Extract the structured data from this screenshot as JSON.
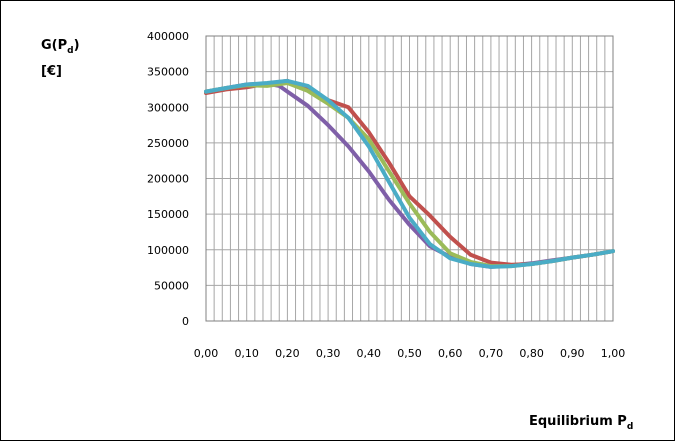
{
  "chart_data": {
    "type": "line",
    "ylabel_main": "G(P",
    "ylabel_sub": "d",
    "ylabel_close": ")",
    "yunit": "[€]",
    "xlabel_main": "Equilibrium P",
    "xlabel_sub": "d",
    "xlim": [
      0,
      1
    ],
    "ylim": [
      0,
      400000
    ],
    "grid": true,
    "legend": "none",
    "x_tick_labels": [
      "0,00",
      "0,10",
      "0,20",
      "0,30",
      "0,40",
      "0,50",
      "0,60",
      "0,70",
      "0,80",
      "0,90",
      "1,00"
    ],
    "y_tick_labels": [
      "0",
      "50000",
      "100000",
      "150000",
      "200000",
      "250000",
      "300000",
      "350000",
      "400000"
    ],
    "series": [
      {
        "color": "#7f5fa8",
        "x": [
          0,
          0.05,
          0.1,
          0.15,
          0.18,
          0.2,
          0.25,
          0.3,
          0.35,
          0.4,
          0.45,
          0.5,
          0.55,
          0.6,
          0.65,
          0.7,
          0.75,
          0.8,
          0.85,
          0.9,
          0.95,
          1.0
        ],
        "y": [
          322000,
          327000,
          332000,
          333000,
          330000,
          322000,
          302000,
          275000,
          245000,
          210000,
          170000,
          135000,
          105000,
          90000,
          80000,
          76000,
          78000,
          81000,
          85000,
          89000,
          93000,
          98000
        ]
      },
      {
        "color": "#c0504d",
        "x": [
          0,
          0.05,
          0.1,
          0.15,
          0.2,
          0.25,
          0.3,
          0.35,
          0.4,
          0.45,
          0.5,
          0.55,
          0.6,
          0.65,
          0.7,
          0.75,
          0.8,
          0.85,
          0.9,
          0.95,
          1.0
        ],
        "y": [
          320000,
          325000,
          328000,
          333000,
          337000,
          325000,
          310000,
          300000,
          265000,
          222000,
          175000,
          148000,
          118000,
          93000,
          82000,
          79000,
          80000,
          84000,
          89000,
          93000,
          98000
        ]
      },
      {
        "color": "#9bbb59",
        "x": [
          0,
          0.05,
          0.1,
          0.15,
          0.2,
          0.25,
          0.3,
          0.35,
          0.4,
          0.45,
          0.5,
          0.55,
          0.6,
          0.65,
          0.7,
          0.75,
          0.8,
          0.85,
          0.9,
          0.95,
          1.0
        ],
        "y": [
          322000,
          327000,
          331000,
          330000,
          334000,
          323000,
          305000,
          285000,
          255000,
          210000,
          165000,
          125000,
          95000,
          83000,
          77000,
          77000,
          80000,
          84000,
          89000,
          93000,
          98000
        ]
      },
      {
        "color": "#4aacc6",
        "x": [
          0,
          0.05,
          0.1,
          0.15,
          0.2,
          0.25,
          0.3,
          0.35,
          0.4,
          0.45,
          0.5,
          0.55,
          0.6,
          0.65,
          0.7,
          0.75,
          0.8,
          0.85,
          0.9,
          0.95,
          1.0
        ],
        "y": [
          322000,
          327000,
          332000,
          334000,
          337000,
          330000,
          310000,
          285000,
          245000,
          195000,
          145000,
          108000,
          88000,
          80000,
          76000,
          77000,
          80000,
          84000,
          89000,
          93000,
          98000
        ]
      }
    ]
  }
}
